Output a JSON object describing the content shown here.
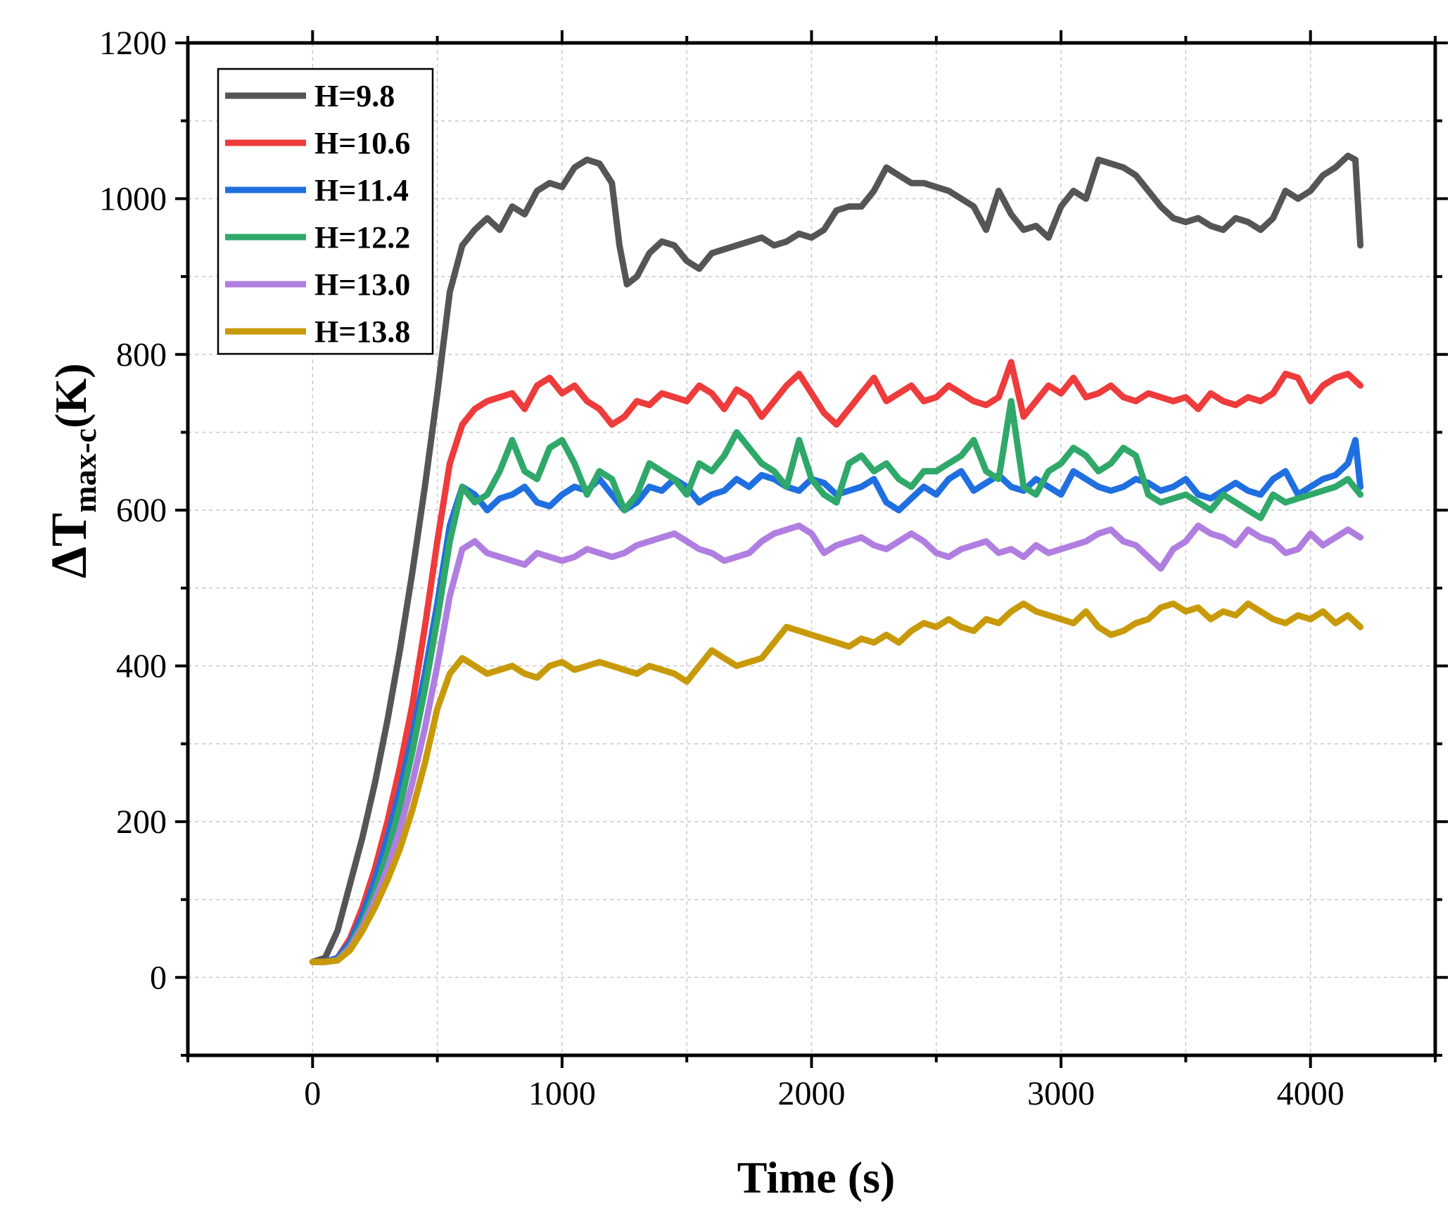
{
  "chart_data": {
    "type": "line",
    "title": "",
    "xlabel": "Time (s)",
    "ylabel_symbol": "ΔT",
    "ylabel_subscript": "max-c",
    "ylabel_suffix": "(K)",
    "xlim": [
      -500,
      4500
    ],
    "ylim": [
      -100,
      1200
    ],
    "xticks": [
      0,
      1000,
      2000,
      3000,
      4000
    ],
    "yticks": [
      0,
      200,
      400,
      600,
      800,
      1000,
      1200
    ],
    "grid": true,
    "legend_position": "top-left",
    "series": [
      {
        "name": "H=9.8",
        "color": "#555555",
        "x": [
          0,
          50,
          100,
          150,
          200,
          250,
          300,
          350,
          400,
          450,
          500,
          550,
          600,
          650,
          700,
          750,
          800,
          850,
          900,
          950,
          1000,
          1050,
          1100,
          1150,
          1200,
          1230,
          1260,
          1300,
          1350,
          1400,
          1450,
          1500,
          1550,
          1600,
          1650,
          1700,
          1750,
          1800,
          1850,
          1900,
          1950,
          2000,
          2050,
          2100,
          2150,
          2200,
          2250,
          2300,
          2350,
          2400,
          2450,
          2500,
          2550,
          2600,
          2650,
          2700,
          2750,
          2800,
          2850,
          2900,
          2950,
          3000,
          3050,
          3100,
          3150,
          3200,
          3250,
          3300,
          3350,
          3400,
          3450,
          3500,
          3550,
          3600,
          3650,
          3700,
          3750,
          3800,
          3850,
          3900,
          3950,
          4000,
          4050,
          4100,
          4150,
          4180,
          4200
        ],
        "y": [
          20,
          25,
          60,
          120,
          180,
          250,
          330,
          420,
          520,
          630,
          750,
          880,
          940,
          960,
          975,
          960,
          990,
          980,
          1010,
          1020,
          1015,
          1040,
          1050,
          1045,
          1020,
          940,
          890,
          900,
          930,
          945,
          940,
          920,
          910,
          930,
          935,
          940,
          945,
          950,
          940,
          945,
          955,
          950,
          960,
          985,
          990,
          990,
          1010,
          1040,
          1030,
          1020,
          1020,
          1015,
          1010,
          1000,
          990,
          960,
          1010,
          980,
          960,
          965,
          950,
          990,
          1010,
          1000,
          1050,
          1045,
          1040,
          1030,
          1010,
          990,
          975,
          970,
          975,
          965,
          960,
          975,
          970,
          960,
          975,
          1010,
          1000,
          1010,
          1030,
          1040,
          1055,
          1050,
          940
        ]
      },
      {
        "name": "H=10.6",
        "color": "#ee3b3b",
        "x": [
          0,
          50,
          100,
          150,
          200,
          250,
          300,
          350,
          400,
          450,
          500,
          550,
          600,
          650,
          700,
          750,
          800,
          850,
          900,
          950,
          1000,
          1050,
          1100,
          1150,
          1200,
          1250,
          1300,
          1350,
          1400,
          1450,
          1500,
          1550,
          1600,
          1650,
          1700,
          1750,
          1800,
          1850,
          1900,
          1950,
          2000,
          2050,
          2100,
          2150,
          2200,
          2250,
          2300,
          2350,
          2400,
          2450,
          2500,
          2550,
          2600,
          2650,
          2700,
          2750,
          2800,
          2850,
          2900,
          2950,
          3000,
          3050,
          3100,
          3150,
          3200,
          3250,
          3300,
          3350,
          3400,
          3450,
          3500,
          3550,
          3600,
          3650,
          3700,
          3750,
          3800,
          3850,
          3900,
          3950,
          4000,
          4050,
          4100,
          4150,
          4200
        ],
        "y": [
          20,
          20,
          25,
          50,
          90,
          140,
          200,
          270,
          350,
          450,
          560,
          660,
          710,
          730,
          740,
          745,
          750,
          730,
          760,
          770,
          750,
          760,
          740,
          730,
          710,
          720,
          740,
          735,
          750,
          745,
          740,
          760,
          750,
          730,
          755,
          745,
          720,
          740,
          760,
          775,
          750,
          725,
          710,
          730,
          750,
          770,
          740,
          750,
          760,
          740,
          745,
          760,
          750,
          740,
          735,
          745,
          790,
          720,
          740,
          760,
          750,
          770,
          745,
          750,
          760,
          745,
          740,
          750,
          745,
          740,
          745,
          730,
          750,
          740,
          735,
          745,
          740,
          750,
          775,
          770,
          740,
          760,
          770,
          775,
          760
        ]
      },
      {
        "name": "H=11.4",
        "color": "#1f6fe0",
        "x": [
          0,
          50,
          100,
          150,
          200,
          250,
          300,
          350,
          400,
          450,
          500,
          550,
          600,
          650,
          700,
          750,
          800,
          850,
          900,
          950,
          1000,
          1050,
          1100,
          1150,
          1200,
          1250,
          1300,
          1350,
          1400,
          1450,
          1500,
          1550,
          1600,
          1650,
          1700,
          1750,
          1800,
          1850,
          1900,
          1950,
          2000,
          2050,
          2100,
          2150,
          2200,
          2250,
          2300,
          2350,
          2400,
          2450,
          2500,
          2550,
          2600,
          2650,
          2700,
          2750,
          2800,
          2850,
          2900,
          2950,
          3000,
          3050,
          3100,
          3150,
          3200,
          3250,
          3300,
          3350,
          3400,
          3450,
          3500,
          3550,
          3600,
          3650,
          3700,
          3750,
          3800,
          3850,
          3900,
          3950,
          4000,
          4050,
          4100,
          4150,
          4180,
          4200
        ],
        "y": [
          20,
          20,
          25,
          45,
          80,
          125,
          180,
          240,
          310,
          390,
          480,
          580,
          630,
          620,
          600,
          615,
          620,
          630,
          610,
          605,
          620,
          630,
          625,
          640,
          620,
          600,
          610,
          630,
          625,
          640,
          630,
          610,
          620,
          625,
          640,
          630,
          645,
          640,
          630,
          625,
          640,
          635,
          620,
          625,
          630,
          640,
          610,
          600,
          615,
          630,
          620,
          640,
          650,
          625,
          635,
          645,
          630,
          625,
          640,
          630,
          620,
          650,
          640,
          630,
          625,
          630,
          640,
          635,
          625,
          630,
          640,
          620,
          615,
          625,
          635,
          625,
          620,
          640,
          650,
          620,
          630,
          640,
          645,
          660,
          690,
          630
        ]
      },
      {
        "name": "H=12.2",
        "color": "#2fa86a",
        "x": [
          0,
          50,
          100,
          150,
          200,
          250,
          300,
          350,
          400,
          450,
          500,
          550,
          600,
          650,
          700,
          750,
          800,
          850,
          900,
          950,
          1000,
          1050,
          1100,
          1150,
          1200,
          1250,
          1300,
          1350,
          1400,
          1450,
          1500,
          1550,
          1600,
          1650,
          1700,
          1750,
          1800,
          1850,
          1900,
          1950,
          2000,
          2050,
          2100,
          2150,
          2200,
          2250,
          2300,
          2350,
          2400,
          2450,
          2500,
          2550,
          2600,
          2650,
          2700,
          2750,
          2800,
          2850,
          2900,
          2950,
          3000,
          3050,
          3100,
          3150,
          3200,
          3250,
          3300,
          3350,
          3400,
          3450,
          3500,
          3550,
          3600,
          3650,
          3700,
          3750,
          3800,
          3850,
          3900,
          3950,
          4000,
          4050,
          4100,
          4150,
          4200
        ],
        "y": [
          20,
          20,
          22,
          40,
          70,
          110,
          160,
          220,
          290,
          370,
          460,
          560,
          630,
          610,
          620,
          650,
          690,
          650,
          640,
          680,
          690,
          660,
          620,
          650,
          640,
          600,
          620,
          660,
          650,
          640,
          620,
          660,
          650,
          670,
          700,
          680,
          660,
          650,
          630,
          690,
          640,
          620,
          610,
          660,
          670,
          650,
          660,
          640,
          630,
          650,
          650,
          660,
          670,
          690,
          650,
          640,
          740,
          630,
          620,
          650,
          660,
          680,
          670,
          650,
          660,
          680,
          670,
          620,
          610,
          615,
          620,
          610,
          600,
          620,
          610,
          600,
          590,
          620,
          610,
          615,
          620,
          625,
          630,
          640,
          620
        ]
      },
      {
        "name": "H=13.0",
        "color": "#b07ee0",
        "x": [
          0,
          50,
          100,
          150,
          200,
          250,
          300,
          350,
          400,
          450,
          500,
          550,
          600,
          650,
          700,
          750,
          800,
          850,
          900,
          950,
          1000,
          1050,
          1100,
          1150,
          1200,
          1250,
          1300,
          1350,
          1400,
          1450,
          1500,
          1550,
          1600,
          1650,
          1700,
          1750,
          1800,
          1850,
          1900,
          1950,
          2000,
          2050,
          2100,
          2150,
          2200,
          2250,
          2300,
          2350,
          2400,
          2450,
          2500,
          2550,
          2600,
          2650,
          2700,
          2750,
          2800,
          2850,
          2900,
          2950,
          3000,
          3050,
          3100,
          3150,
          3200,
          3250,
          3300,
          3350,
          3400,
          3450,
          3500,
          3550,
          3600,
          3650,
          3700,
          3750,
          3800,
          3850,
          3900,
          3950,
          4000,
          4050,
          4100,
          4150,
          4200
        ],
        "y": [
          20,
          20,
          22,
          38,
          65,
          100,
          140,
          190,
          250,
          320,
          400,
          490,
          550,
          560,
          545,
          540,
          535,
          530,
          545,
          540,
          535,
          540,
          550,
          545,
          540,
          545,
          555,
          560,
          565,
          570,
          560,
          550,
          545,
          535,
          540,
          545,
          560,
          570,
          575,
          580,
          570,
          545,
          555,
          560,
          565,
          555,
          550,
          560,
          570,
          560,
          545,
          540,
          550,
          555,
          560,
          545,
          550,
          540,
          555,
          545,
          550,
          555,
          560,
          570,
          575,
          560,
          555,
          540,
          525,
          550,
          560,
          580,
          570,
          565,
          555,
          575,
          565,
          560,
          545,
          550,
          570,
          555,
          565,
          575,
          565
        ]
      },
      {
        "name": "H=13.8",
        "color": "#c89a0a",
        "x": [
          0,
          50,
          100,
          150,
          200,
          250,
          300,
          350,
          400,
          450,
          500,
          550,
          600,
          650,
          700,
          750,
          800,
          850,
          900,
          950,
          1000,
          1050,
          1100,
          1150,
          1200,
          1250,
          1300,
          1350,
          1400,
          1450,
          1500,
          1550,
          1600,
          1650,
          1700,
          1750,
          1800,
          1850,
          1900,
          1950,
          2000,
          2050,
          2100,
          2150,
          2200,
          2250,
          2300,
          2350,
          2400,
          2450,
          2500,
          2550,
          2600,
          2650,
          2700,
          2750,
          2800,
          2850,
          2900,
          2950,
          3000,
          3050,
          3100,
          3150,
          3200,
          3250,
          3300,
          3350,
          3400,
          3450,
          3500,
          3550,
          3600,
          3650,
          3700,
          3750,
          3800,
          3850,
          3900,
          3950,
          4000,
          4050,
          4100,
          4150,
          4200
        ],
        "y": [
          20,
          20,
          22,
          35,
          60,
          90,
          125,
          165,
          215,
          275,
          345,
          390,
          410,
          400,
          390,
          395,
          400,
          390,
          385,
          400,
          405,
          395,
          400,
          405,
          400,
          395,
          390,
          400,
          395,
          390,
          380,
          400,
          420,
          410,
          400,
          405,
          410,
          430,
          450,
          445,
          440,
          435,
          430,
          425,
          435,
          430,
          440,
          430,
          445,
          455,
          450,
          460,
          450,
          445,
          460,
          455,
          470,
          480,
          470,
          465,
          460,
          455,
          470,
          450,
          440,
          445,
          455,
          460,
          475,
          480,
          470,
          475,
          460,
          470,
          465,
          480,
          470,
          460,
          455,
          465,
          460,
          470,
          455,
          465,
          450
        ]
      }
    ]
  }
}
